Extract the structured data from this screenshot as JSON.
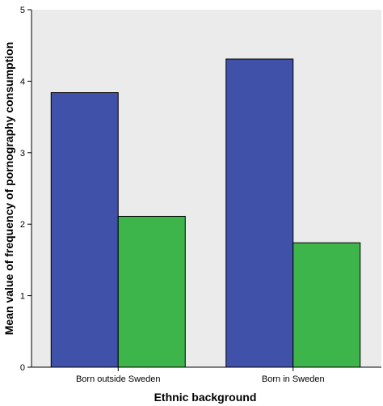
{
  "chart_data": {
    "type": "bar",
    "title": "",
    "xlabel": "Ethnic background",
    "ylabel": "Mean value of frequency of pornography consumption",
    "categories": [
      "Born outside Sweden",
      "Born in Sweden"
    ],
    "series": [
      {
        "values": [
          3.84,
          4.31
        ],
        "color": "#3f51a8"
      },
      {
        "values": [
          2.11,
          1.74
        ],
        "color": "#3db54a"
      }
    ],
    "yticks": [
      "0",
      "1",
      "2",
      "3",
      "4",
      "5"
    ],
    "ylim": [
      0,
      5
    ],
    "plot_background": "#ebebeb",
    "grid": false,
    "legend": "none"
  }
}
